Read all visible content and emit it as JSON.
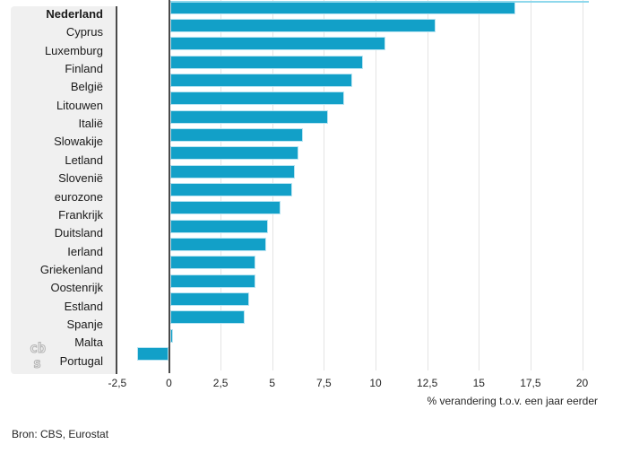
{
  "chart_data": {
    "type": "bar",
    "orientation": "horizontal",
    "categories": [
      "Nederland",
      "Cyprus",
      "Luxemburg",
      "Finland",
      "België",
      "Litouwen",
      "Italië",
      "Slowakije",
      "Letland",
      "Slovenië",
      "eurozone",
      "Frankrijk",
      "Duitsland",
      "Ierland",
      "Griekenland",
      "Oostenrijk",
      "Estland",
      "Spanje",
      "Malta",
      "Portugal"
    ],
    "values": [
      16.7,
      12.8,
      10.4,
      9.3,
      8.8,
      8.4,
      7.6,
      6.4,
      6.2,
      6.0,
      5.9,
      5.3,
      4.7,
      4.6,
      4.1,
      4.1,
      3.8,
      3.6,
      0.1,
      -1.5
    ],
    "bold_categories": [
      "Nederland"
    ],
    "title": "",
    "xlabel": "% verandering t.o.v. een jaar eerder",
    "ylabel": "",
    "x_ticks": [
      {
        "value": -2.5,
        "label": "-2,5"
      },
      {
        "value": 0,
        "label": "0"
      },
      {
        "value": 2.5,
        "label": "2,5"
      },
      {
        "value": 5,
        "label": "5"
      },
      {
        "value": 7.5,
        "label": "7,5"
      },
      {
        "value": 10,
        "label": "10"
      },
      {
        "value": 12.5,
        "label": "12,5"
      },
      {
        "value": 15,
        "label": "15"
      },
      {
        "value": 17.5,
        "label": "17,5"
      },
      {
        "value": 20,
        "label": "20"
      }
    ],
    "xlim": [
      -2.5,
      20.3
    ],
    "grid": "vertical",
    "legend": "none",
    "source": "Bron: CBS, Eurostat",
    "colors": {
      "bar_fill": "#12a0c8",
      "bar_border": "#b9e4f2",
      "label_panel_bg": "#f0f0f0",
      "axis_line": "#4a4a4a",
      "gridline": "#e4e4e4",
      "top_edge_line": "#8fd8ec",
      "logo_gray": "#b3b3b3",
      "text": "#262626"
    }
  },
  "branding": {
    "logo_text_top": "cb",
    "logo_text_bottom": "s"
  }
}
